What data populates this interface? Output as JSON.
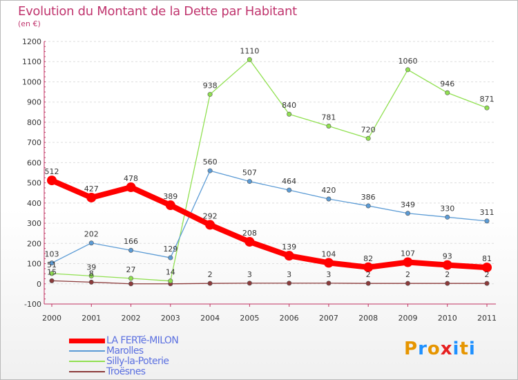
{
  "chart_data": {
    "type": "line",
    "title": "Evolution du Montant de la Dette par Habitant",
    "subtitle": "(en €)",
    "x": [
      "2000",
      "2001",
      "2002",
      "2003",
      "2004",
      "2005",
      "2006",
      "2007",
      "2008",
      "2009",
      "2010",
      "2011"
    ],
    "ylim": [
      -100,
      1200
    ],
    "yticks": [
      -100,
      0,
      100,
      200,
      300,
      400,
      500,
      600,
      700,
      800,
      900,
      1000,
      1100,
      1200
    ],
    "series": [
      {
        "name": "LA FERTé-MILON",
        "color": "#ff0000",
        "values": [
          512,
          427,
          478,
          389,
          292,
          208,
          139,
          104,
          82,
          107,
          93,
          81
        ],
        "labels": [
          "512",
          "427",
          "478",
          "389",
          "292",
          "208",
          "139",
          "104",
          "82",
          "107",
          "93",
          "81"
        ]
      },
      {
        "name": "Marolles",
        "color": "#5b9bd5",
        "values": [
          103,
          202,
          166,
          129,
          560,
          507,
          464,
          420,
          386,
          349,
          330,
          311
        ],
        "labels": [
          "103",
          "202",
          "166",
          "129",
          "560",
          "507",
          "464",
          "420",
          "386",
          "349",
          "330",
          "311"
        ]
      },
      {
        "name": "Silly-la-Poterie",
        "color": "#90e050",
        "values": [
          51,
          39,
          27,
          14,
          938,
          1110,
          840,
          781,
          720,
          1060,
          946,
          871
        ],
        "labels": [
          "51",
          "39",
          "27",
          "14",
          "938",
          "1110",
          "840",
          "781",
          "720",
          "1060",
          "946",
          "871"
        ]
      },
      {
        "name": "Troësnes",
        "color": "#8b3a3a",
        "values": [
          15,
          8,
          0,
          0,
          2,
          3,
          3,
          3,
          2,
          2,
          2,
          2
        ],
        "labels": [
          "15",
          "8",
          "",
          "",
          "2",
          "3",
          "3",
          "3",
          "2",
          "2",
          "2",
          "2"
        ]
      }
    ]
  },
  "legend": {
    "items": [
      "LA FERTé-MILON",
      "Marolles",
      "Silly-la-Poterie",
      "Troësnes"
    ]
  },
  "logo": {
    "text": "Proxiti",
    "colors": [
      "#e69500",
      "#1e90ff",
      "#e69500",
      "#e62020",
      "#1e90ff",
      "#e69500",
      "#1e90ff"
    ]
  }
}
